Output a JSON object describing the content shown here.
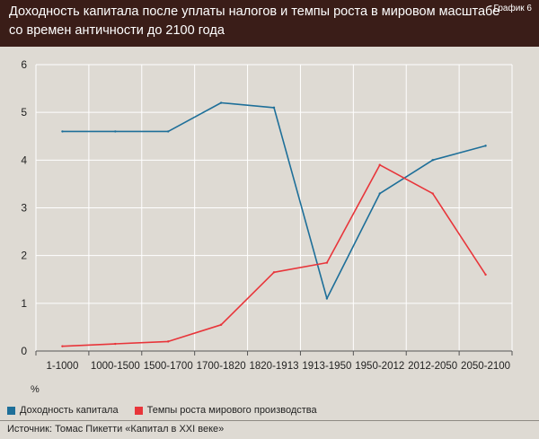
{
  "header": {
    "title_line1": "Доходность капитала после уплаты налогов и темпы роста в мировом масштабе",
    "title_line2": "со времен античности до 2100 года",
    "label": "График 6"
  },
  "source": "Источник: Томас Пикетти «Капитал в XXI веке»",
  "colors": {
    "series_capital": "#1e6f99",
    "series_growth": "#e8353a",
    "header_bg": "#3a1d18",
    "background": "#dedad3"
  },
  "chart_data": {
    "type": "line",
    "title": "Доходность капитала после уплаты налогов и темпы роста в мировом масштабе со времен античности до 2100 года",
    "xlabel": "",
    "ylabel": "%",
    "ylim": [
      0,
      6
    ],
    "yticks": [
      "0",
      "1",
      "2",
      "3",
      "4",
      "5",
      "6"
    ],
    "categories": [
      "1-1000",
      "1000-1500",
      "1500-1700",
      "1700-1820",
      "1820-1913",
      "1913-1950",
      "1950-2012",
      "2012-2050",
      "2050-2100"
    ],
    "grid": true,
    "legend_position": "bottom",
    "series": [
      {
        "name": "Доходность капитала",
        "color": "#1e6f99",
        "values": [
          4.6,
          4.6,
          4.6,
          5.2,
          5.1,
          1.1,
          3.3,
          4.0,
          4.3
        ]
      },
      {
        "name": "Темпы роста мирового производства",
        "color": "#e8353a",
        "values": [
          0.1,
          0.15,
          0.2,
          0.55,
          1.65,
          1.85,
          3.9,
          3.3,
          1.6
        ]
      }
    ]
  }
}
